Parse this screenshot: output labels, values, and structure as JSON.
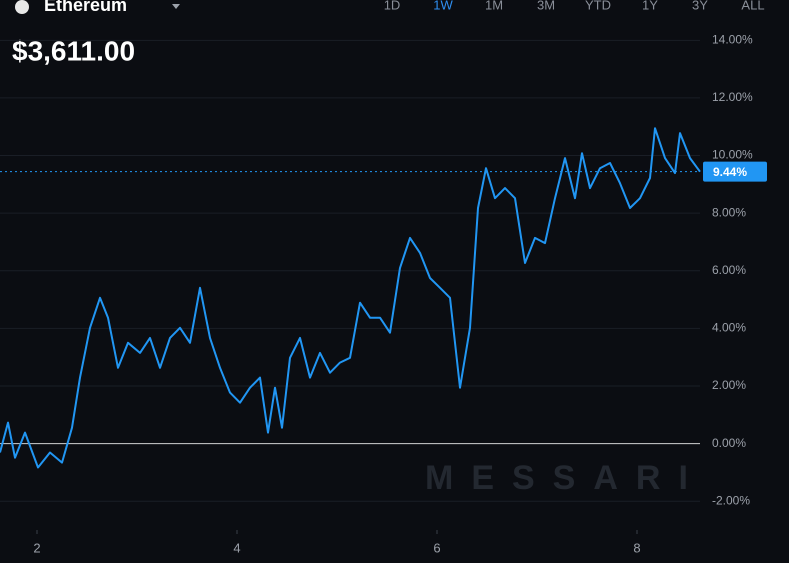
{
  "chart_data": {
    "type": "line",
    "title": "Ethereum",
    "price": "$3,611.00",
    "ranges": [
      "1D",
      "1W",
      "1M",
      "3M",
      "YTD",
      "1Y",
      "3Y",
      "ALL"
    ],
    "active_range": 1,
    "watermark": "MESSARI",
    "x": [
      1.63,
      1.71,
      1.78,
      1.88,
      2.01,
      2.13,
      2.25,
      2.35,
      2.43,
      2.53,
      2.63,
      2.71,
      2.81,
      2.91,
      3.03,
      3.13,
      3.23,
      3.33,
      3.43,
      3.53,
      3.63,
      3.73,
      3.83,
      3.93,
      4.03,
      4.13,
      4.23,
      4.31,
      4.38,
      4.45,
      4.53,
      4.63,
      4.73,
      4.83,
      4.93,
      5.03,
      5.13,
      5.23,
      5.33,
      5.43,
      5.53,
      5.63,
      5.73,
      5.83,
      5.93,
      6.03,
      6.13,
      6.23,
      6.33,
      6.41,
      6.49,
      6.58,
      6.68,
      6.78,
      6.88,
      6.98,
      7.08,
      7.18,
      7.28,
      7.38,
      7.45,
      7.53,
      7.63,
      7.73,
      7.83,
      7.93,
      8.03,
      8.13,
      8.18,
      8.28,
      8.38,
      8.43,
      8.53,
      8.63
    ],
    "values": [
      -0.31,
      0.73,
      -0.49,
      0.38,
      -0.83,
      -0.31,
      -0.66,
      0.55,
      2.29,
      4.02,
      5.06,
      4.37,
      2.63,
      3.5,
      3.15,
      3.67,
      2.63,
      3.67,
      4.02,
      3.5,
      5.41,
      3.67,
      2.63,
      1.77,
      1.42,
      1.94,
      2.29,
      0.38,
      1.94,
      0.55,
      2.98,
      3.67,
      2.29,
      3.15,
      2.46,
      2.81,
      2.98,
      4.89,
      4.37,
      4.37,
      3.85,
      6.1,
      7.14,
      6.62,
      5.75,
      5.41,
      5.06,
      1.94,
      4.02,
      8.18,
      9.56,
      8.52,
      8.87,
      8.52,
      6.27,
      7.14,
      6.96,
      8.52,
      9.91,
      8.52,
      10.08,
      8.87,
      9.56,
      9.74,
      9.04,
      8.18,
      8.52,
      9.22,
      10.95,
      9.91,
      9.39,
      10.78,
      9.91,
      9.44
    ],
    "color": "#2196f3",
    "xlim": [
      1.63,
      8.63
    ],
    "xticks": [
      2,
      4,
      6,
      8
    ],
    "ylim": [
      -3,
      15.4
    ],
    "yticks": [
      {
        "value": -2,
        "label": "-2.00%"
      },
      {
        "value": 0,
        "label": "0.00%"
      },
      {
        "value": 2,
        "label": "2.00%"
      },
      {
        "value": 4,
        "label": "4.00%"
      },
      {
        "value": 6,
        "label": "6.00%"
      },
      {
        "value": 8,
        "label": "8.00%"
      },
      {
        "value": 10,
        "label": "10.00%"
      },
      {
        "value": 12,
        "label": "12.00%"
      },
      {
        "value": 14,
        "label": "14.00%"
      }
    ],
    "grid": true,
    "reference_line": 0,
    "last_value": 9.44,
    "last_value_label": "9.44%"
  }
}
